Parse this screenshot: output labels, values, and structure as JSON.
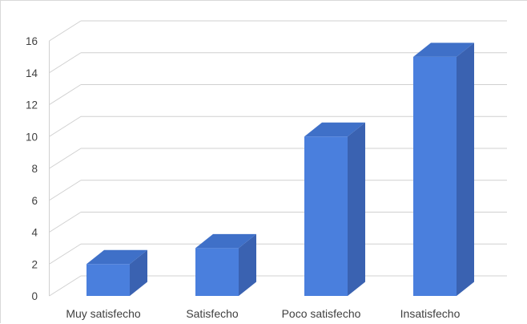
{
  "chart_data": {
    "type": "bar",
    "style": "3d-column",
    "categories": [
      "Muy satisfecho",
      "Satisfecho",
      "Poco satisfecho",
      "Insatisfecho"
    ],
    "values": [
      2,
      3,
      10,
      15
    ],
    "ylim": [
      0,
      16
    ],
    "yticks": [
      "0",
      "2",
      "4",
      "6",
      "8",
      "10",
      "12",
      "14",
      "16"
    ],
    "grid": true,
    "legend": "none",
    "colors": {
      "front": "#4a7fdd",
      "top": "#3f70c8",
      "side": "#3a62b1",
      "grid": "#d0d0d0",
      "text": "#404040"
    }
  }
}
